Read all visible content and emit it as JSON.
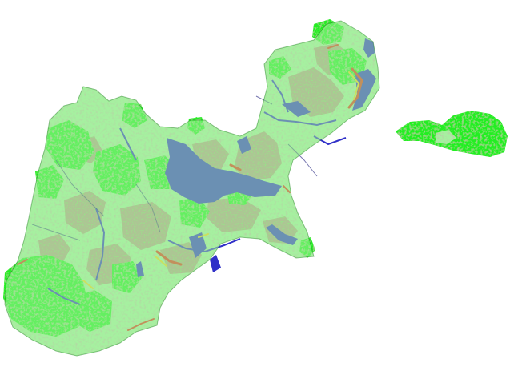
{
  "map": {
    "kind": "land-cover classification",
    "legend_shown": false,
    "text_shown": false,
    "classes": [
      {
        "name": "vegetation-bright",
        "color": "#22ee22"
      },
      {
        "name": "vegetation-light",
        "color": "#a6f0a0"
      },
      {
        "name": "bare-soil",
        "color": "#b59a88"
      },
      {
        "name": "water",
        "color": "#3030c8"
      },
      {
        "name": "edge-red",
        "color": "#e03018"
      },
      {
        "name": "edge-yellow",
        "color": "#f0d020"
      }
    ]
  }
}
